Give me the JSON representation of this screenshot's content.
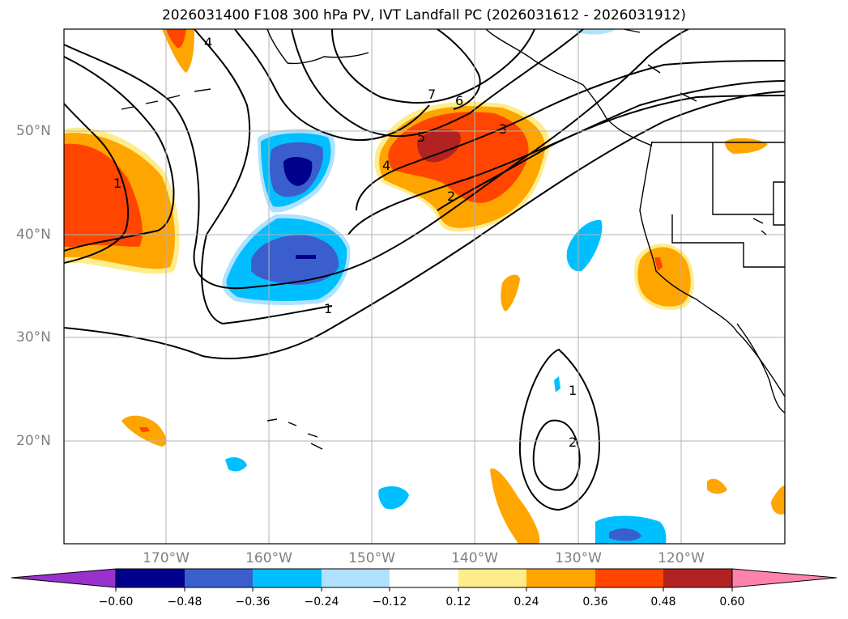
{
  "title": "2026031400 F108 300 hPa PV, IVT Landfall PC (2026031612 - 2026031912)",
  "lat_labels": [
    "50°N",
    "40°N",
    "30°N",
    "20°N"
  ],
  "lon_labels": [
    "170°W",
    "160°W",
    "150°W",
    "140°W",
    "130°W",
    "120°W"
  ],
  "contour_labels": [
    "1",
    "1",
    "1",
    "2",
    "2",
    "3",
    "4",
    "4",
    "5",
    "6",
    "7"
  ],
  "colorbar": {
    "ticks": [
      "−0.60",
      "−0.48",
      "−0.36",
      "−0.24",
      "−0.12",
      "0.12",
      "0.24",
      "0.36",
      "0.48",
      "0.60"
    ],
    "colors": [
      "#9932cc",
      "#00008b",
      "#3a5fcd",
      "#00bfff",
      "#b0e2ff",
      "#ffffff",
      "#ffec8b",
      "#ffa500",
      "#ff4500",
      "#b22222",
      "#ff82ab"
    ]
  },
  "colors": {
    "coast": "#000000",
    "grid": "#b3b3b3",
    "contour": "#000000"
  }
}
